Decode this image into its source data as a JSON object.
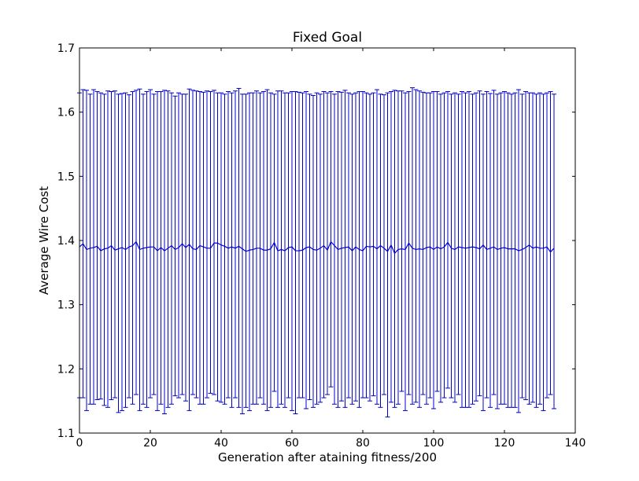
{
  "chart_data": {
    "type": "line",
    "title": "Fixed Goal",
    "xlabel": "Generation after ataining fitness/200",
    "ylabel": "Average Wire Cost",
    "xlim": [
      0,
      140
    ],
    "ylim": [
      1.1,
      1.7
    ],
    "xticks": [
      0,
      20,
      40,
      60,
      80,
      100,
      120,
      140
    ],
    "yticks": [
      1.1,
      1.2,
      1.3,
      1.4,
      1.5,
      1.6,
      1.7
    ],
    "xtick_labels": [
      "0",
      "20",
      "40",
      "60",
      "80",
      "100",
      "120",
      "140"
    ],
    "ytick_labels": [
      "1.1",
      "1.2",
      "1.3",
      "1.4",
      "1.5",
      "1.6",
      "1.7"
    ],
    "grid": false,
    "series": [
      {
        "color": "#0000cc",
        "x": [
          0,
          1,
          2,
          3,
          4,
          5,
          6,
          7,
          8,
          9,
          10,
          11,
          12,
          13,
          14,
          15,
          16,
          17,
          18,
          19,
          20,
          21,
          22,
          23,
          24,
          25,
          26,
          27,
          28,
          29,
          30,
          31,
          32,
          33,
          34,
          35,
          36,
          37,
          38,
          39,
          40,
          41,
          42,
          43,
          44,
          45,
          46,
          47,
          48,
          49,
          50,
          51,
          52,
          53,
          54,
          55,
          56,
          57,
          58,
          59,
          60,
          61,
          62,
          63,
          64,
          65,
          66,
          67,
          68,
          69,
          70,
          71,
          72,
          73,
          74,
          75,
          76,
          77,
          78,
          79,
          80,
          81,
          82,
          83,
          84,
          85,
          86,
          87,
          88,
          89,
          90,
          91,
          92,
          93,
          94,
          95,
          96,
          97,
          98,
          99,
          100,
          101,
          102,
          103,
          104,
          105,
          106,
          107,
          108,
          109,
          110,
          111,
          112,
          113,
          114,
          115,
          116,
          117,
          118,
          119,
          120,
          121,
          122,
          123,
          124,
          125,
          126,
          127,
          128,
          129,
          130,
          131,
          132,
          133,
          134
        ],
        "y": [
          1.39,
          1.395,
          1.386,
          1.388,
          1.389,
          1.391,
          1.384,
          1.387,
          1.388,
          1.392,
          1.385,
          1.387,
          1.389,
          1.386,
          1.39,
          1.392,
          1.398,
          1.386,
          1.388,
          1.389,
          1.39,
          1.39,
          1.384,
          1.389,
          1.384,
          1.388,
          1.392,
          1.386,
          1.389,
          1.395,
          1.389,
          1.394,
          1.387,
          1.386,
          1.392,
          1.39,
          1.388,
          1.388,
          1.396,
          1.396,
          1.393,
          1.391,
          1.388,
          1.39,
          1.388,
          1.391,
          1.387,
          1.383,
          1.385,
          1.386,
          1.388,
          1.388,
          1.385,
          1.385,
          1.387,
          1.397,
          1.384,
          1.386,
          1.384,
          1.389,
          1.39,
          1.384,
          1.384,
          1.385,
          1.389,
          1.39,
          1.386,
          1.385,
          1.388,
          1.392,
          1.385,
          1.398,
          1.392,
          1.386,
          1.388,
          1.389,
          1.39,
          1.384,
          1.39,
          1.386,
          1.384,
          1.391,
          1.39,
          1.391,
          1.387,
          1.392,
          1.388,
          1.383,
          1.393,
          1.38,
          1.386,
          1.387,
          1.386,
          1.396,
          1.388,
          1.386,
          1.387,
          1.386,
          1.389,
          1.39,
          1.386,
          1.39,
          1.387,
          1.39,
          1.397,
          1.388,
          1.386,
          1.39,
          1.389,
          1.388,
          1.389,
          1.39,
          1.389,
          1.387,
          1.393,
          1.386,
          1.388,
          1.39,
          1.386,
          1.388,
          1.389,
          1.387,
          1.387,
          1.387,
          1.384,
          1.386,
          1.389,
          1.393,
          1.388,
          1.39,
          1.388,
          1.388,
          1.39,
          1.382,
          1.388
        ],
        "err_low": [
          1.155,
          1.155,
          1.135,
          1.145,
          1.145,
          1.152,
          1.153,
          1.143,
          1.14,
          1.152,
          1.155,
          1.132,
          1.135,
          1.14,
          1.155,
          1.145,
          1.16,
          1.135,
          1.145,
          1.14,
          1.155,
          1.16,
          1.135,
          1.145,
          1.13,
          1.14,
          1.145,
          1.158,
          1.155,
          1.16,
          1.15,
          1.135,
          1.16,
          1.155,
          1.145,
          1.145,
          1.155,
          1.162,
          1.16,
          1.15,
          1.148,
          1.145,
          1.155,
          1.14,
          1.155,
          1.14,
          1.13,
          1.14,
          1.135,
          1.145,
          1.145,
          1.155,
          1.145,
          1.135,
          1.14,
          1.165,
          1.14,
          1.145,
          1.14,
          1.155,
          1.135,
          1.13,
          1.155,
          1.155,
          1.138,
          1.152,
          1.14,
          1.145,
          1.148,
          1.155,
          1.16,
          1.172,
          1.145,
          1.14,
          1.15,
          1.14,
          1.155,
          1.145,
          1.15,
          1.14,
          1.155,
          1.155,
          1.15,
          1.158,
          1.145,
          1.14,
          1.16,
          1.125,
          1.148,
          1.14,
          1.145,
          1.165,
          1.135,
          1.16,
          1.145,
          1.148,
          1.14,
          1.16,
          1.145,
          1.155,
          1.138,
          1.165,
          1.148,
          1.155,
          1.17,
          1.155,
          1.148,
          1.16,
          1.14,
          1.14,
          1.14,
          1.145,
          1.15,
          1.158,
          1.135,
          1.155,
          1.14,
          1.16,
          1.138,
          1.145,
          1.145,
          1.14,
          1.14,
          1.14,
          1.132,
          1.155,
          1.152,
          1.145,
          1.148,
          1.14,
          1.145,
          1.135,
          1.155,
          1.16,
          1.138
        ],
        "err_high": [
          1.63,
          1.635,
          1.634,
          1.628,
          1.635,
          1.632,
          1.63,
          1.628,
          1.633,
          1.632,
          1.633,
          1.628,
          1.629,
          1.63,
          1.627,
          1.632,
          1.634,
          1.636,
          1.628,
          1.632,
          1.635,
          1.628,
          1.632,
          1.632,
          1.634,
          1.633,
          1.63,
          1.625,
          1.63,
          1.628,
          1.628,
          1.636,
          1.634,
          1.633,
          1.632,
          1.631,
          1.633,
          1.632,
          1.634,
          1.63,
          1.63,
          1.628,
          1.632,
          1.63,
          1.633,
          1.637,
          1.628,
          1.628,
          1.63,
          1.63,
          1.633,
          1.63,
          1.632,
          1.635,
          1.63,
          1.628,
          1.633,
          1.633,
          1.63,
          1.63,
          1.632,
          1.632,
          1.631,
          1.63,
          1.632,
          1.628,
          1.626,
          1.63,
          1.628,
          1.632,
          1.63,
          1.632,
          1.628,
          1.632,
          1.631,
          1.634,
          1.63,
          1.628,
          1.63,
          1.632,
          1.632,
          1.63,
          1.628,
          1.63,
          1.635,
          1.628,
          1.627,
          1.63,
          1.632,
          1.634,
          1.633,
          1.633,
          1.63,
          1.632,
          1.638,
          1.635,
          1.633,
          1.631,
          1.63,
          1.63,
          1.632,
          1.632,
          1.628,
          1.63,
          1.632,
          1.628,
          1.63,
          1.628,
          1.632,
          1.63,
          1.632,
          1.628,
          1.63,
          1.633,
          1.628,
          1.632,
          1.629,
          1.634,
          1.628,
          1.63,
          1.632,
          1.63,
          1.628,
          1.63,
          1.635,
          1.628,
          1.632,
          1.63,
          1.63,
          1.628,
          1.63,
          1.628,
          1.63,
          1.632,
          1.628
        ]
      }
    ]
  }
}
